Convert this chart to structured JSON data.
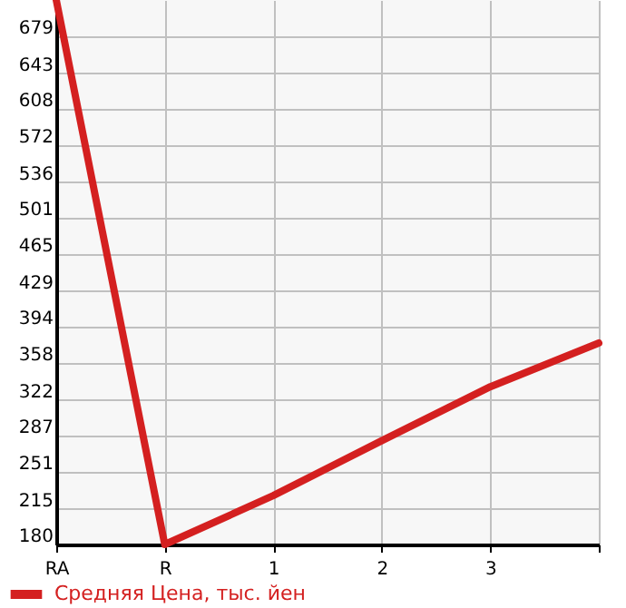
{
  "chart_data": {
    "type": "line",
    "categories": [
      "RA",
      "R",
      "1",
      "2",
      "3",
      null
    ],
    "series": [
      {
        "name": "Средняя Цена, тыс. йен",
        "color": "#d42020",
        "values": [
          715,
          180,
          228,
          282,
          335,
          378
        ]
      }
    ],
    "ylim": [
      180,
      715
    ],
    "yticks": [
      180,
      215,
      251,
      287,
      322,
      358,
      394,
      429,
      465,
      501,
      536,
      572,
      608,
      643,
      679
    ],
    "grid": true,
    "legend": "bottom left",
    "marker": "none",
    "line_style": "solid"
  }
}
